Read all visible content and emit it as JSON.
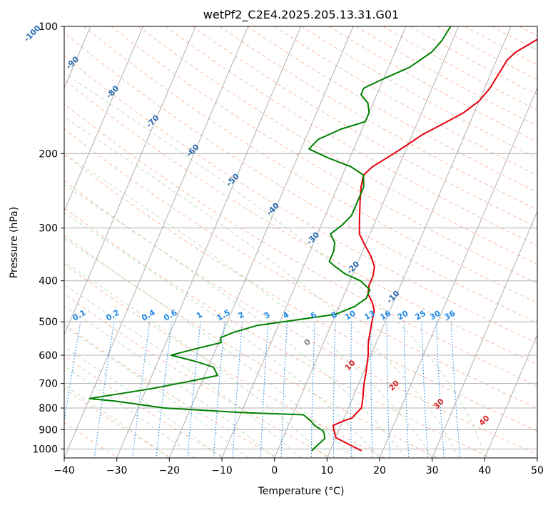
{
  "chart_data": {
    "type": "line",
    "title": "wetPf2_C2E4.2025.205.13.31.G01",
    "xlabel": "Temperature (°C)",
    "ylabel": "Pressure (hPa)",
    "xlim": [
      -40,
      50
    ],
    "ylim": [
      1050,
      100
    ],
    "y_scale": "log",
    "x_ticks": [
      "−40",
      "−30",
      "−20",
      "−10",
      "0",
      "10",
      "20",
      "30",
      "40",
      "50"
    ],
    "y_ticks": [
      "100",
      "200",
      "300",
      "400",
      "500",
      "600",
      "700",
      "800",
      "900",
      "1000"
    ],
    "series": [
      {
        "color": "#e8000b",
        "points": [
          [
            16.0,
            1010
          ],
          [
            13,
            975
          ],
          [
            10,
            940
          ],
          [
            9,
            900
          ],
          [
            8.5,
            880
          ],
          [
            10,
            860
          ],
          [
            11.5,
            845
          ],
          [
            12,
            820
          ],
          [
            12.5,
            800
          ],
          [
            12,
            760
          ],
          [
            11.5,
            730
          ],
          [
            11,
            700
          ],
          [
            10.5,
            660
          ],
          [
            10,
            630
          ],
          [
            9.5,
            600
          ],
          [
            8.5,
            560
          ],
          [
            8,
            530
          ],
          [
            7.5,
            500
          ],
          [
            7,
            470
          ],
          [
            6,
            450
          ],
          [
            4.5,
            430
          ],
          [
            4,
            410
          ],
          [
            4,
            390
          ],
          [
            3.5,
            370
          ],
          [
            2,
            350
          ],
          [
            0,
            330
          ],
          [
            -2,
            310
          ],
          [
            -3,
            290
          ],
          [
            -4.5,
            260
          ],
          [
            -5.5,
            240
          ],
          [
            -6,
            225
          ],
          [
            -5,
            215
          ],
          [
            -2,
            200
          ],
          [
            0,
            190
          ],
          [
            2,
            180
          ],
          [
            5,
            170
          ],
          [
            8,
            160
          ],
          [
            10,
            150
          ],
          [
            11,
            140
          ],
          [
            11.5,
            130
          ],
          [
            12,
            120
          ],
          [
            13,
            115
          ],
          [
            15,
            110
          ],
          [
            17,
            105
          ],
          [
            18,
            100
          ]
        ]
      },
      {
        "color": "#008000",
        "points": [
          [
            6.5,
            1010
          ],
          [
            7,
            985
          ],
          [
            7.5,
            965
          ],
          [
            8,
            945
          ],
          [
            7.5,
            920
          ],
          [
            7,
            905
          ],
          [
            5,
            880
          ],
          [
            4,
            860
          ],
          [
            2,
            830
          ],
          [
            -10,
            820
          ],
          [
            -25,
            800
          ],
          [
            -35,
            770
          ],
          [
            -40,
            760
          ],
          [
            -36,
            745
          ],
          [
            -29,
            720
          ],
          [
            -22,
            690
          ],
          [
            -17.5,
            670
          ],
          [
            -19,
            640
          ],
          [
            -23,
            620
          ],
          [
            -28,
            600
          ],
          [
            -24,
            580
          ],
          [
            -19.5,
            560
          ],
          [
            -20,
            545
          ],
          [
            -18,
            530
          ],
          [
            -14,
            510
          ],
          [
            -7,
            495
          ],
          [
            0,
            480
          ],
          [
            3,
            460
          ],
          [
            4.5,
            440
          ],
          [
            4.5,
            420
          ],
          [
            2,
            400
          ],
          [
            -1.5,
            385
          ],
          [
            -4,
            370
          ],
          [
            -5.5,
            360
          ],
          [
            -5.5,
            340
          ],
          [
            -6,
            325
          ],
          [
            -7.5,
            310
          ],
          [
            -6,
            295
          ],
          [
            -5,
            280
          ],
          [
            -5,
            260
          ],
          [
            -5,
            240
          ],
          [
            -6,
            225
          ],
          [
            -9,
            215
          ],
          [
            -14,
            205
          ],
          [
            -18.5,
            195
          ],
          [
            -17.5,
            185
          ],
          [
            -14,
            175
          ],
          [
            -10,
            168
          ],
          [
            -10,
            160
          ],
          [
            -11,
            152
          ],
          [
            -13,
            145
          ],
          [
            -13,
            140
          ],
          [
            -10,
            133
          ],
          [
            -6,
            125
          ],
          [
            -3,
            115
          ],
          [
            -2,
            108
          ],
          [
            -1.5,
            100
          ]
        ]
      }
    ],
    "mixing_ratio_labels": [
      "0.1",
      "0.2",
      "0.4",
      "0.6",
      "1",
      "1.5",
      "2",
      "3",
      "4",
      "6",
      "8",
      "10",
      "13",
      "16",
      "20",
      "25",
      "30",
      "36"
    ],
    "dry_adiabat_labels": [
      "-100",
      "-90",
      "-80",
      "-70",
      "-60",
      "-50",
      "-40",
      "-30",
      "-20",
      "-10"
    ],
    "moist_adiabat_labels": [
      "0",
      "10",
      "20",
      "30",
      "40"
    ],
    "colors": {
      "temperature": "#e8000b",
      "dewpoint": "#008000",
      "dry_adiabat": "#f4a582",
      "moist_adiabat": "#9fd39f",
      "mixing_ratio": "#1f88e5",
      "dry_label": "#2b6cb0",
      "moist_label": "#d62728",
      "isotherm": "#7f7f7f",
      "grid": "#b0b0b0"
    }
  }
}
